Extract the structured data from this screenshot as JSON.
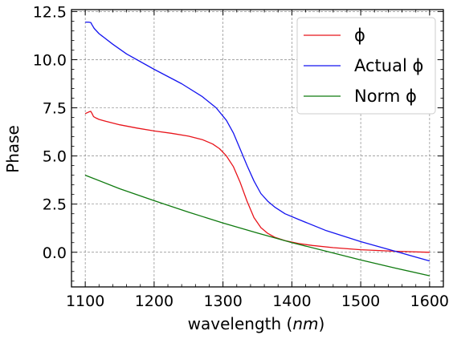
{
  "chart_data": {
    "type": "line",
    "title": "",
    "xlabel": "wavelength (nm)",
    "xlabel_parts": {
      "text": "wavelength (",
      "italic": "nm",
      "close": ")"
    },
    "ylabel": "Phase",
    "xlim": [
      1080,
      1620
    ],
    "ylim": [
      -1.8,
      12.6
    ],
    "xticks": [
      1100,
      1200,
      1300,
      1400,
      1500,
      1600
    ],
    "yticks": [
      0.0,
      2.5,
      5.0,
      7.5,
      10.0,
      12.5
    ],
    "xtick_labels": [
      "1100",
      "1200",
      "1300",
      "1400",
      "1500",
      "1600"
    ],
    "ytick_labels": [
      "0.0",
      "2.5",
      "5.0",
      "7.5",
      "10.0",
      "12.5"
    ],
    "grid": true,
    "legend_position": "top-right",
    "series": [
      {
        "name": "ϕ",
        "color": "#e8141b",
        "x": [
          1100,
          1105,
          1108,
          1110,
          1112,
          1115,
          1120,
          1130,
          1150,
          1175,
          1200,
          1225,
          1250,
          1270,
          1285,
          1295,
          1305,
          1315,
          1325,
          1335,
          1345,
          1355,
          1365,
          1375,
          1390,
          1410,
          1430,
          1460,
          1500,
          1550,
          1600
        ],
        "values": [
          7.2,
          7.28,
          7.32,
          7.2,
          7.05,
          6.98,
          6.9,
          6.8,
          6.62,
          6.45,
          6.3,
          6.18,
          6.03,
          5.85,
          5.62,
          5.38,
          5.0,
          4.45,
          3.62,
          2.65,
          1.8,
          1.28,
          0.98,
          0.78,
          0.6,
          0.45,
          0.35,
          0.24,
          0.13,
          0.05,
          0.0
        ]
      },
      {
        "name": "Actual ϕ",
        "color": "#1414f0",
        "x": [
          1100,
          1105,
          1108,
          1110,
          1113,
          1120,
          1140,
          1160,
          1200,
          1240,
          1270,
          1290,
          1305,
          1315,
          1325,
          1335,
          1345,
          1355,
          1365,
          1375,
          1390,
          1410,
          1450,
          1500,
          1550,
          1600
        ],
        "values": [
          11.95,
          11.95,
          11.93,
          11.8,
          11.62,
          11.35,
          10.8,
          10.3,
          9.5,
          8.75,
          8.08,
          7.5,
          6.85,
          6.2,
          5.35,
          4.5,
          3.7,
          3.05,
          2.65,
          2.35,
          2.0,
          1.7,
          1.12,
          0.55,
          0.05,
          -0.45
        ]
      },
      {
        "name": "Norm ϕ",
        "color": "#0f7a0f",
        "x": [
          1100,
          1150,
          1200,
          1250,
          1300,
          1350,
          1400,
          1450,
          1500,
          1550,
          1600
        ],
        "values": [
          4.0,
          3.3,
          2.68,
          2.08,
          1.52,
          1.0,
          0.5,
          0.05,
          -0.4,
          -0.82,
          -1.22
        ]
      }
    ]
  }
}
